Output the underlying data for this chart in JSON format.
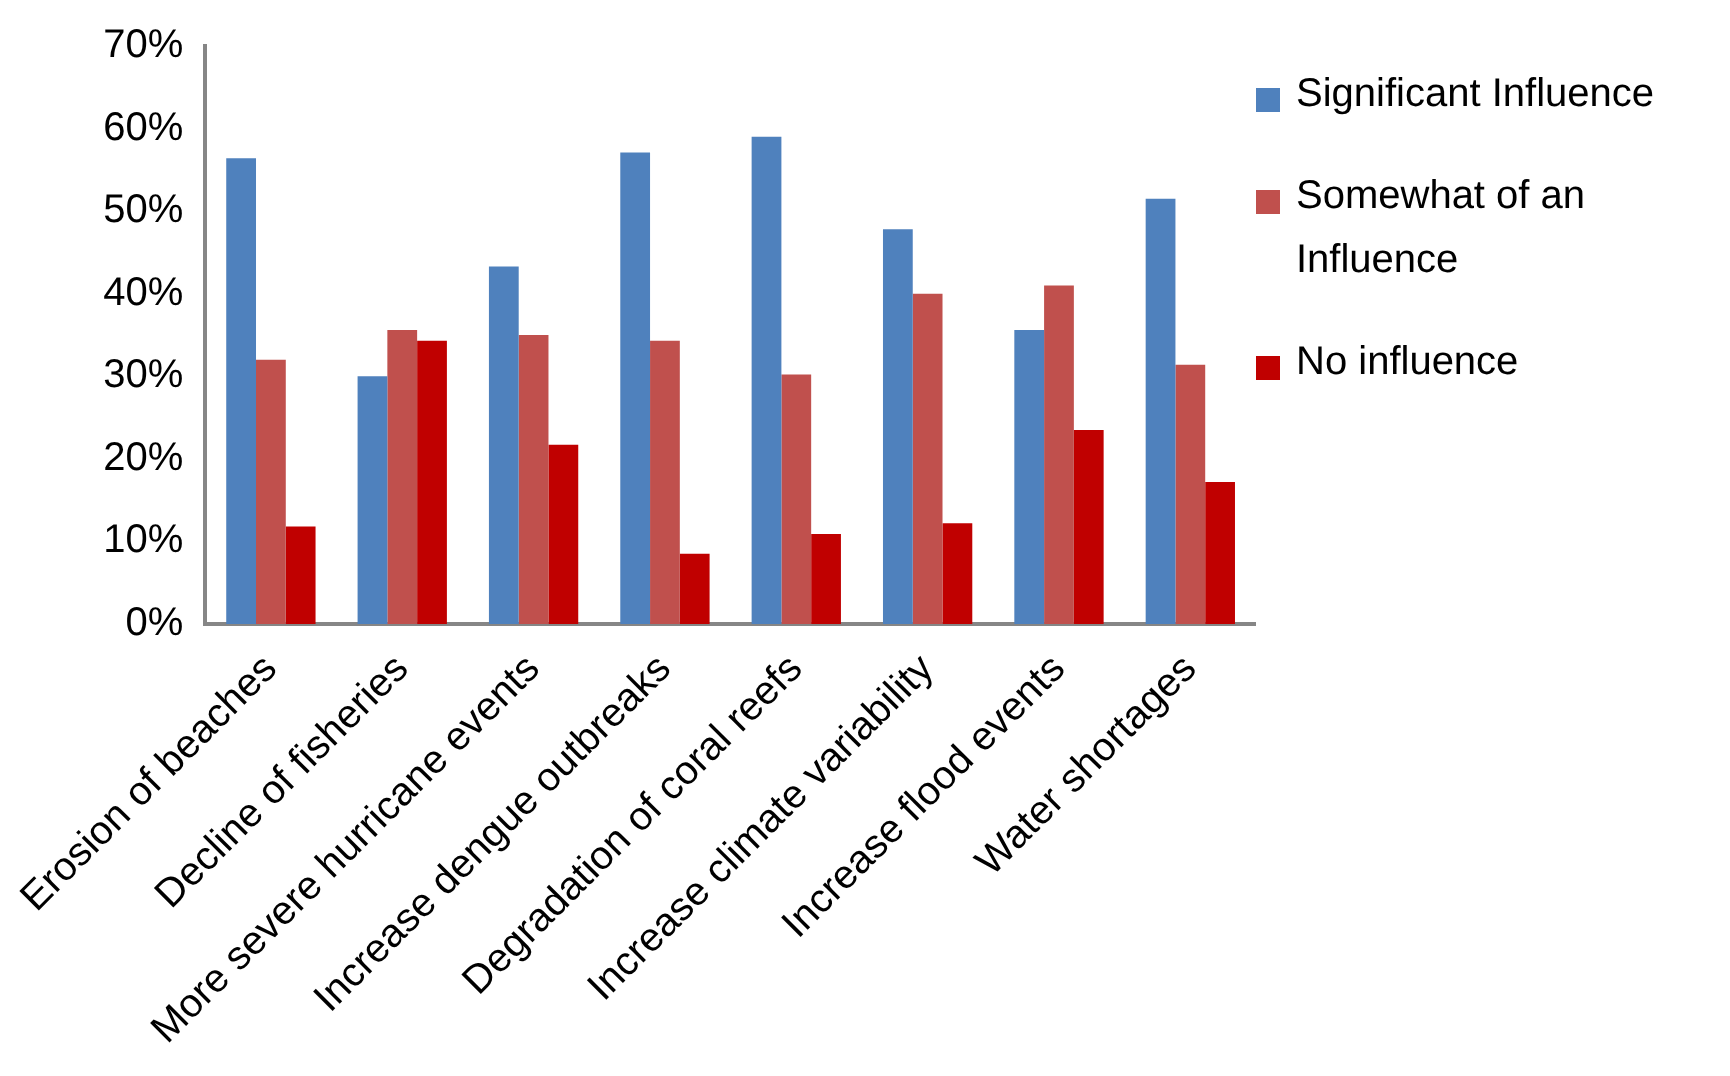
{
  "chart_data": {
    "type": "bar",
    "categories": [
      "Erosion of beaches",
      "Decline of fisheries",
      "More severe hurricane events",
      "Increase dengue outbreaks",
      "Degradation of coral reefs",
      "Increase climate variability",
      "Increase flood events",
      "Water shortages"
    ],
    "series": [
      {
        "name": "Significant Influence",
        "color": "#4f81bd",
        "values": [
          56.4,
          30,
          43.3,
          57.1,
          59,
          47.8,
          35.6,
          51.5
        ]
      },
      {
        "name": "Somewhat of an Influence",
        "color": "#c0504d",
        "values": [
          32,
          35.6,
          35,
          34.3,
          30.2,
          40,
          41,
          31.4
        ]
      },
      {
        "name": "No influence",
        "color": "#c00000",
        "values": [
          11.8,
          34.3,
          21.7,
          8.5,
          10.9,
          12.2,
          23.5,
          17.2
        ]
      }
    ],
    "ylim": [
      0,
      70
    ],
    "yticks": [
      {
        "value": 0,
        "label": "0%"
      },
      {
        "value": 10,
        "label": "10%"
      },
      {
        "value": 20,
        "label": "20%"
      },
      {
        "value": 30,
        "label": "30%"
      },
      {
        "value": 40,
        "label": "40%"
      },
      {
        "value": 50,
        "label": "50%"
      },
      {
        "value": 60,
        "label": "60%"
      },
      {
        "value": 70,
        "label": "70%"
      }
    ],
    "grid": false,
    "legend": "right"
  }
}
